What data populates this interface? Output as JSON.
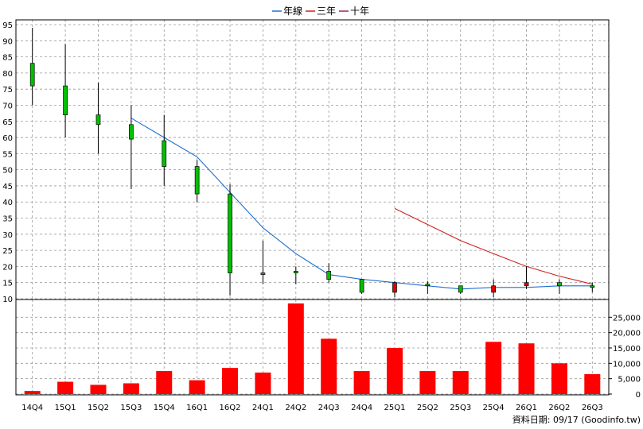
{
  "chart_data": {
    "type": "candlestick",
    "legend": [
      {
        "name": "年線",
        "color": "#1f6fd0"
      },
      {
        "name": "三年",
        "color": "#d01f1f"
      },
      {
        "name": "十年",
        "color": "#a0206a"
      }
    ],
    "categories": [
      "14Q4",
      "15Q1",
      "15Q2",
      "15Q3",
      "15Q4",
      "16Q1",
      "16Q2",
      "24Q1",
      "24Q2",
      "24Q3",
      "24Q4",
      "25Q1",
      "25Q2",
      "25Q3",
      "25Q4",
      "26Q1",
      "26Q2",
      "26Q3"
    ],
    "price_axis": {
      "min": 10,
      "max": 95,
      "ticks": [
        10,
        15,
        20,
        25,
        30,
        35,
        40,
        45,
        50,
        55,
        60,
        65,
        70,
        75,
        80,
        85,
        90,
        95
      ]
    },
    "volume_axis": {
      "min": 0,
      "max": 30000,
      "ticks": [
        0,
        5000,
        10000,
        15000,
        20000,
        25000
      ],
      "tick_labels": [
        "0",
        "5,000",
        "10,000",
        "15,000",
        "20,000",
        "25,000"
      ]
    },
    "candles": [
      {
        "open": 76,
        "close": 83,
        "high": 94,
        "low": 70
      },
      {
        "open": 67,
        "close": 76,
        "high": 89,
        "low": 60
      },
      {
        "open": 64,
        "close": 67,
        "high": 77,
        "low": 55
      },
      {
        "open": 59.5,
        "close": 64,
        "high": 70,
        "low": 44
      },
      {
        "open": 51,
        "close": 59,
        "high": 67,
        "low": 45
      },
      {
        "open": 42.5,
        "close": 51,
        "high": 53,
        "low": 40
      },
      {
        "open": 18,
        "close": 42.5,
        "high": 45.5,
        "low": 11
      },
      {
        "open": 18,
        "close": 18,
        "high": 28,
        "low": 14.5
      },
      {
        "open": 18,
        "close": 18.5,
        "high": 20,
        "low": 14.5
      },
      {
        "open": 16,
        "close": 18.5,
        "high": 21,
        "low": 15
      },
      {
        "open": 12,
        "close": 16,
        "high": 16,
        "low": 11.5
      },
      {
        "open": 15,
        "close": 12,
        "high": 15.5,
        "low": 10.5
      },
      {
        "open": 14,
        "close": 14.5,
        "high": 15.5,
        "low": 11.5
      },
      {
        "open": 12,
        "close": 14,
        "high": 14,
        "low": 11.5
      },
      {
        "open": 14,
        "close": 12,
        "high": 16,
        "low": 10.5
      },
      {
        "open": 15,
        "close": 14,
        "high": 20,
        "low": 13
      },
      {
        "open": 14,
        "close": 15,
        "high": 16,
        "low": 11.5
      },
      {
        "open": 13.5,
        "close": 14,
        "high": 15,
        "low": 12
      }
    ],
    "series": [
      {
        "name": "年線",
        "values": [
          null,
          null,
          null,
          66,
          60,
          54,
          43,
          32,
          24,
          17.5,
          16,
          15,
          14,
          13,
          13.5,
          13.5,
          14,
          14
        ]
      },
      {
        "name": "三年",
        "values": [
          null,
          null,
          null,
          null,
          null,
          null,
          null,
          null,
          null,
          null,
          null,
          38,
          33,
          28,
          24,
          20,
          17,
          14.5
        ]
      },
      {
        "name": "十年",
        "values": [
          null,
          null,
          null,
          null,
          null,
          null,
          null,
          null,
          null,
          null,
          null,
          null,
          null,
          null,
          null,
          null,
          null,
          null
        ]
      }
    ],
    "volume": [
      1000,
      4000,
      3000,
      3500,
      7500,
      4500,
      8500,
      7000,
      29500,
      18000,
      7500,
      15000,
      7500,
      7500,
      17000,
      16500,
      10000,
      6500
    ],
    "source_text": "資料日期: 09/17   (Goodinfo.tw)"
  },
  "colors": {
    "up_candle": "#00c000",
    "down_candle": "#e00000",
    "volume_bar": "#ff0000",
    "grid": "#999999"
  }
}
